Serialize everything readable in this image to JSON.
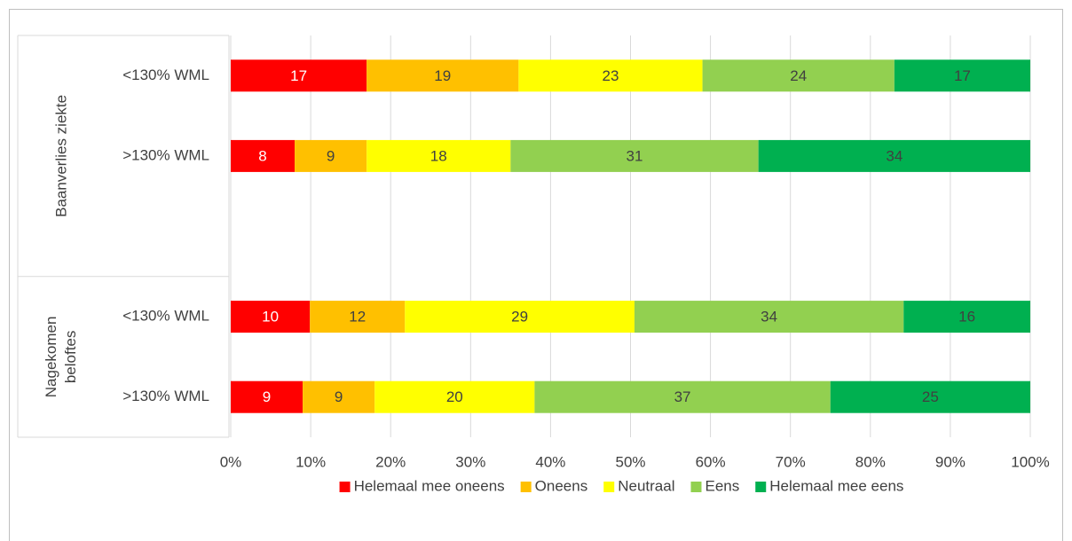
{
  "chart_data": {
    "type": "bar",
    "orientation": "horizontal",
    "stacked": "percent",
    "groups": [
      {
        "label": "Baanverlies ziekte",
        "categories": [
          "<130% WML",
          ">130% WML",
          null
        ]
      },
      {
        "label": "Nagekomen beloftes",
        "categories": [
          "<130% WML",
          ">130% WML"
        ]
      }
    ],
    "series": [
      {
        "name": "Helemaal mee oneens",
        "color": "#ff0000",
        "label_color": "#ffffff",
        "values": [
          17,
          8,
          null,
          10,
          9
        ]
      },
      {
        "name": "Oneens",
        "color": "#ffc000",
        "label_color": "#404040",
        "values": [
          19,
          9,
          null,
          12,
          9
        ]
      },
      {
        "name": "Neutraal",
        "color": "#ffff00",
        "label_color": "#404040",
        "values": [
          23,
          18,
          null,
          29,
          20
        ]
      },
      {
        "name": "Eens",
        "color": "#92d050",
        "label_color": "#404040",
        "values": [
          24,
          31,
          null,
          34,
          37
        ]
      },
      {
        "name": "Helemaal mee eens",
        "color": "#00b050",
        "label_color": "#404040",
        "values": [
          17,
          34,
          null,
          16,
          25
        ]
      }
    ],
    "xlim": [
      0,
      100
    ],
    "xticks": [
      {
        "value": 0,
        "label": "0%"
      },
      {
        "value": 10,
        "label": "10%"
      },
      {
        "value": 20,
        "label": "20%"
      },
      {
        "value": 30,
        "label": "30%"
      },
      {
        "value": 40,
        "label": "40%"
      },
      {
        "value": 50,
        "label": "50%"
      },
      {
        "value": 60,
        "label": "60%"
      },
      {
        "value": 70,
        "label": "70%"
      },
      {
        "value": 80,
        "label": "80%"
      },
      {
        "value": 90,
        "label": "90%"
      },
      {
        "value": 100,
        "label": "100%"
      }
    ],
    "grid": true,
    "legend": "bottom"
  }
}
